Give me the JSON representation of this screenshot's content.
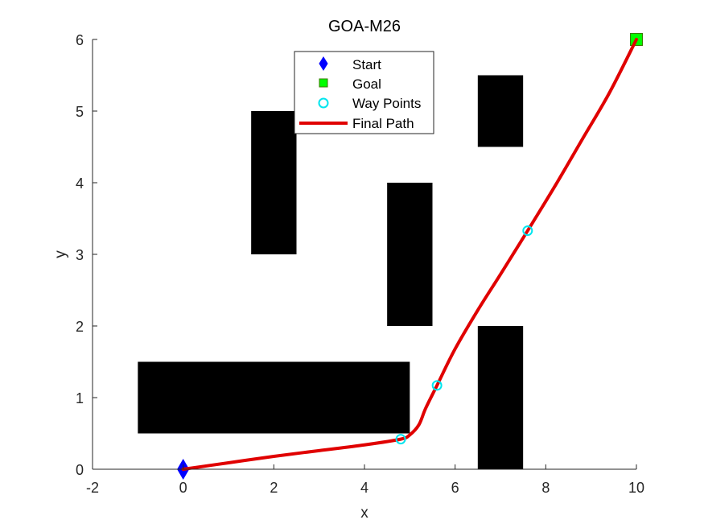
{
  "chart_data": {
    "type": "line",
    "title": "GOA-M26",
    "xlabel": "x",
    "ylabel": "y",
    "xlim": [
      -2,
      10
    ],
    "ylim": [
      0,
      6
    ],
    "xticks": [
      -2,
      0,
      2,
      4,
      6,
      8,
      10
    ],
    "yticks": [
      0,
      1,
      2,
      3,
      4,
      5,
      6
    ],
    "grid": false,
    "legend_position": "north",
    "legend": [
      "Start",
      "Goal",
      "Way Points",
      "Final Path"
    ],
    "start": {
      "x": 0,
      "y": 0,
      "marker": "diamond",
      "color": "#0000ff"
    },
    "goal": {
      "x": 10,
      "y": 6,
      "marker": "square",
      "color": "#00ff00"
    },
    "way_points": [
      {
        "x": 4.8,
        "y": 0.42
      },
      {
        "x": 5.6,
        "y": 1.17
      },
      {
        "x": 7.6,
        "y": 3.33
      }
    ],
    "final_path": {
      "color": "#e00000",
      "points": [
        [
          0,
          0
        ],
        [
          1,
          0.09
        ],
        [
          2,
          0.18
        ],
        [
          3,
          0.26
        ],
        [
          4,
          0.34
        ],
        [
          4.8,
          0.42
        ],
        [
          5.0,
          0.48
        ],
        [
          5.2,
          0.62
        ],
        [
          5.35,
          0.85
        ],
        [
          5.6,
          1.17
        ],
        [
          6.0,
          1.68
        ],
        [
          6.5,
          2.22
        ],
        [
          7.0,
          2.72
        ],
        [
          7.6,
          3.33
        ],
        [
          8.2,
          3.95
        ],
        [
          8.8,
          4.6
        ],
        [
          9.4,
          5.25
        ],
        [
          10,
          6
        ]
      ]
    },
    "obstacles": [
      {
        "x": -1,
        "y": 0.5,
        "w": 6,
        "h": 1
      },
      {
        "x": 1.5,
        "y": 3,
        "w": 1,
        "h": 2
      },
      {
        "x": 4.5,
        "y": 2,
        "w": 1,
        "h": 2
      },
      {
        "x": 6.5,
        "y": 4.5,
        "w": 1,
        "h": 1
      },
      {
        "x": 6.5,
        "y": 0,
        "w": 1,
        "h": 2
      }
    ]
  },
  "colors": {
    "path": "#e00000",
    "start": "#0000ff",
    "goal": "#00ff00",
    "waypoint": "#00e5ee",
    "obstacle": "#000000",
    "axis": "#262626"
  }
}
